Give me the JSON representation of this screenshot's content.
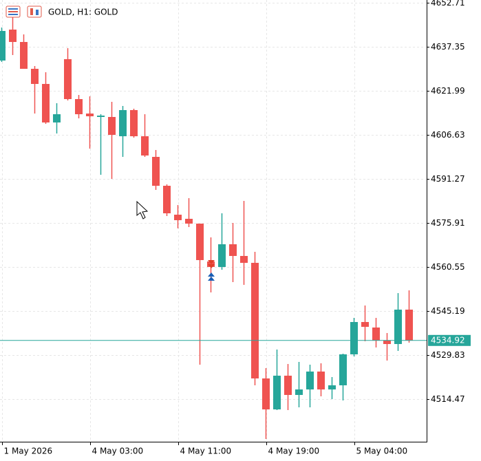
{
  "chart_data": {
    "type": "candlestick",
    "title": "GOLD, H1:  GOLD",
    "categories": [
      "1 May 2026",
      null,
      null,
      null,
      null,
      null,
      null,
      null,
      "4 May 03:00",
      null,
      null,
      null,
      null,
      null,
      null,
      null,
      "4 May 11:00",
      null,
      null,
      null,
      null,
      null,
      null,
      null,
      "4 May 19:00",
      null,
      null,
      null,
      null,
      null,
      null,
      null,
      "5 May 04:00",
      null,
      null,
      null,
      null,
      null
    ],
    "open": [
      4632.55,
      4643.35,
      4639.03,
      4629.67,
      4624.39,
      4610.95,
      4633.03,
      4619.11,
      4614.07,
      4612.87,
      4612.87,
      4606.15,
      4615.27,
      4606.15,
      4598.95,
      4588.87,
      4578.79,
      4577.35,
      4575.67,
      4562.47,
      4560.55,
      4568.47,
      4564.39,
      4561.99,
      4521.67,
      4510.87,
      4522.63,
      4515.91,
      4517.83,
      4524.07,
      4517.83,
      4519.27,
      4530.07,
      4541.35,
      4539.43,
      4534.87,
      4533.67,
      4545.67
    ],
    "high": [
      4644.07,
      4648.39,
      4641.67,
      4630.63,
      4628.47,
      4617.67,
      4636.87,
      4620.55,
      4620.07,
      4613.83,
      4618.15,
      4616.71,
      4615.75,
      4613.83,
      4601.35,
      4589.35,
      4582.15,
      4584.55,
      4575.67,
      4570.87,
      4579.27,
      4575.91,
      4583.59,
      4565.83,
      4525.27,
      4531.75,
      4526.71,
      4527.43,
      4526.47,
      4526.95,
      4522.15,
      4530.31,
      4542.79,
      4547.11,
      4542.79,
      4537.51,
      4551.43,
      4552.39
    ],
    "low": [
      4632.07,
      4634.47,
      4629.67,
      4614.07,
      4610.47,
      4607.11,
      4618.63,
      4612.39,
      4601.83,
      4592.71,
      4591.27,
      4598.95,
      4605.67,
      4598.95,
      4587.43,
      4578.31,
      4574.03,
      4574.47,
      4526.47,
      4551.67,
      4559.59,
      4555.27,
      4554.31,
      4519.27,
      4500.55,
      4510.63,
      4510.63,
      4511.59,
      4511.59,
      4515.43,
      4514.47,
      4513.99,
      4529.35,
      4534.63,
      4532.47,
      4527.91,
      4531.27,
      4534.15
    ],
    "close": [
      4642.87,
      4639.03,
      4629.67,
      4624.39,
      4610.95,
      4613.83,
      4619.11,
      4613.83,
      4613.11,
      4613.35,
      4606.63,
      4615.27,
      4606.15,
      4599.43,
      4588.87,
      4579.27,
      4576.87,
      4575.67,
      4562.95,
      4560.55,
      4568.47,
      4564.39,
      4561.99,
      4521.67,
      4510.87,
      4522.63,
      4515.91,
      4517.83,
      4524.07,
      4517.83,
      4519.27,
      4530.07,
      4541.35,
      4539.67,
      4534.87,
      4533.67,
      4545.67,
      4534.92
    ],
    "up_color": "#26a69a",
    "down_color": "#ef5350",
    "current_price": 4534.92,
    "current_price_label": "4534.92",
    "ylim": [
      4499.59,
      4653.67
    ],
    "yticks": [
      4652.71,
      4637.35,
      4621.99,
      4606.63,
      4591.27,
      4575.91,
      4560.55,
      4545.19,
      4529.83,
      4514.47
    ],
    "grid": true
  }
}
